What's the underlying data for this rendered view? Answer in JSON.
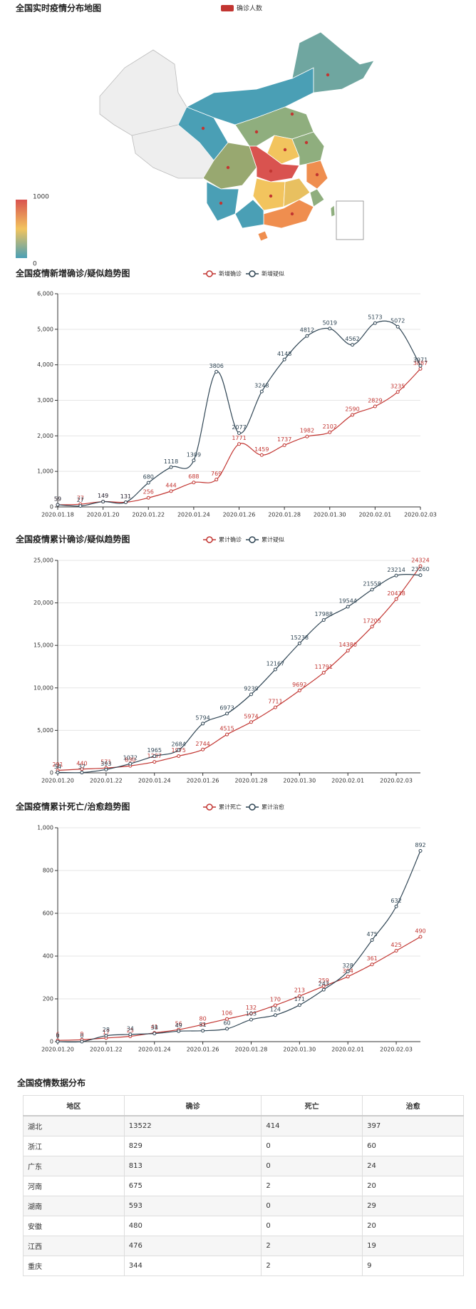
{
  "chart_data": [
    {
      "type": "map",
      "title": "全国实时疫情分布地图",
      "legend": "确诊人数",
      "color": "#c23531",
      "range": [
        0,
        1000
      ]
    },
    {
      "type": "line",
      "title": "全国疫情新增确诊/疑似趋势图",
      "categories": [
        "2020.01.18",
        null,
        "2020.01.20",
        null,
        "2020.01.22",
        null,
        "2020.01.24",
        null,
        "2020.01.26",
        null,
        "2020.01.28",
        null,
        "2020.01.30",
        null,
        "2020.02.01",
        null,
        "2020.02.03"
      ],
      "series": [
        {
          "name": "新增确诊",
          "color": "#c23531",
          "values": [
            59,
            77,
            149,
            131,
            256,
            444,
            688,
            769,
            1771,
            1459,
            1737,
            1982,
            2102,
            2590,
            2829,
            3235,
            3887
          ]
        },
        {
          "name": "新增疑似",
          "color": "#2f4554",
          "values": [
            59,
            27,
            149,
            131,
            680,
            1118,
            1309,
            3806,
            2077,
            3248,
            4148,
            4812,
            5019,
            4562,
            5173,
            5072,
            3971
          ]
        }
      ],
      "ylim": [
        0,
        6000
      ],
      "yticks": [
        0,
        {
          "value": 1000,
          "label": "1,000"
        },
        {
          "value": 2000,
          "label": "2,000"
        },
        {
          "value": 3000,
          "label": "3,000"
        },
        {
          "value": 4000,
          "label": "4,000"
        },
        {
          "value": 5000,
          "label": "5,000"
        },
        {
          "value": 6000,
          "label": "6,000"
        }
      ],
      "grid": true
    },
    {
      "type": "line",
      "title": "全国疫情累计确诊/疑似趋势图",
      "categories": [
        "2020.01.20",
        null,
        "2020.01.22",
        null,
        "2020.01.24",
        null,
        "2020.01.26",
        null,
        "2020.01.28",
        null,
        "2020.01.30",
        null,
        "2020.02.01",
        null,
        "2020.02.03",
        null
      ],
      "series": [
        {
          "name": "累计确诊",
          "color": "#c23531",
          "values": [
            291,
            440,
            571,
            830,
            1287,
            1975,
            2744,
            4515,
            5974,
            7711,
            9692,
            11791,
            14380,
            17205,
            20438,
            24324
          ]
        },
        {
          "name": "累计疑似",
          "color": "#2f4554",
          "values": [
            54,
            37,
            393,
            1072,
            1965,
            2684,
            5794,
            6973,
            9239,
            12167,
            15238,
            17988,
            19544,
            21558,
            23214,
            23260
          ]
        }
      ],
      "ylim": [
        0,
        25000
      ],
      "yticks": [
        0,
        {
          "value": 5000,
          "label": "5,000"
        },
        {
          "value": 10000,
          "label": "10,000"
        },
        {
          "value": 15000,
          "label": "15,000"
        },
        {
          "value": 20000,
          "label": "20,000"
        },
        {
          "value": 25000,
          "label": "25,000"
        }
      ],
      "grid": true
    },
    {
      "type": "line",
      "title": "全国疫情累计死亡/治愈趋势图",
      "categories": [
        "2020.01.20",
        null,
        "2020.01.22",
        null,
        "2020.01.24",
        null,
        "2020.01.26",
        null,
        "2020.01.28",
        null,
        "2020.01.30",
        null,
        "2020.02.01",
        null,
        "2020.02.03",
        null
      ],
      "series": [
        {
          "name": "累计死亡",
          "color": "#c23531",
          "values": [
            6,
            9,
            17,
            25,
            41,
            56,
            80,
            106,
            132,
            170,
            213,
            259,
            304,
            361,
            425,
            490
          ]
        },
        {
          "name": "累计治愈",
          "color": "#2f4554",
          "values": [
            0,
            0,
            28,
            34,
            38,
            49,
            51,
            60,
            103,
            124,
            171,
            243,
            328,
            475,
            632,
            892
          ]
        }
      ],
      "ylim": [
        0,
        1000
      ],
      "yticks": [
        0,
        200,
        400,
        600,
        800,
        {
          "value": 1000,
          "label": "1,000"
        }
      ],
      "grid": true
    }
  ],
  "table": {
    "title": "全国疫情数据分布",
    "header": [
      "地区",
      "确诊",
      "死亡",
      "治愈"
    ],
    "rows": [
      [
        "湖北",
        13522,
        414,
        397
      ],
      [
        "浙江",
        829,
        0,
        60
      ],
      [
        "广东",
        813,
        0,
        24
      ],
      [
        "河南",
        675,
        2,
        20
      ],
      [
        "湖南",
        593,
        0,
        29
      ],
      [
        "安徽",
        480,
        0,
        20
      ],
      [
        "江西",
        476,
        2,
        19
      ],
      [
        "重庆",
        344,
        2,
        9
      ]
    ]
  }
}
